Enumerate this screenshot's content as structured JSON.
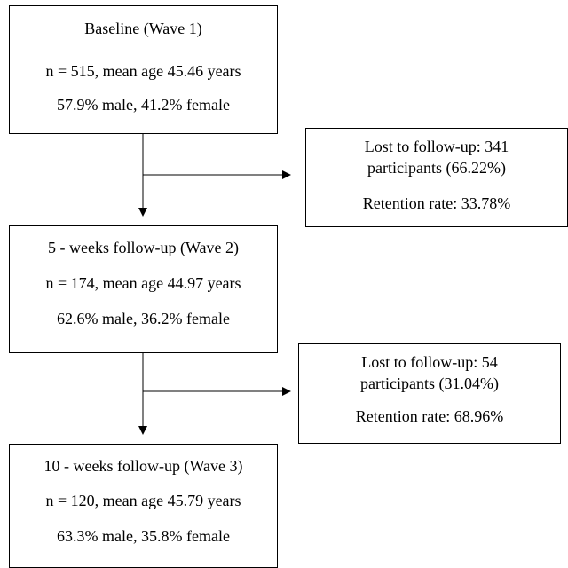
{
  "waves": [
    {
      "title": "Baseline (Wave 1)",
      "sample": "n = 515, mean age 45.46 years",
      "gender": "57.9% male, 41.2% female"
    },
    {
      "title": "5 - weeks follow-up (Wave 2)",
      "sample": "n = 174, mean age 44.97 years",
      "gender": "62.6% male, 36.2% female"
    },
    {
      "title": "10 - weeks follow-up (Wave 3)",
      "sample": "n = 120, mean age 45.79 years",
      "gender": "63.3% male, 35.8% female"
    }
  ],
  "losses": [
    {
      "lost_line1": "Lost to follow-up: 341",
      "lost_line2": "participants (66.22%)",
      "retention": "Retention rate: 33.78%"
    },
    {
      "lost_line1": "Lost to follow-up: 54",
      "lost_line2": "participants (31.04%)",
      "retention": "Retention rate: 68.96%"
    }
  ]
}
